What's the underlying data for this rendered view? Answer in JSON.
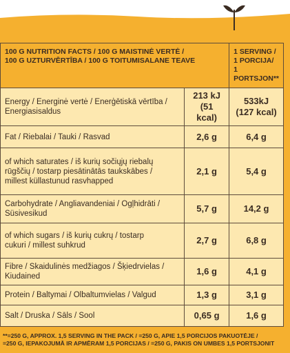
{
  "header": {
    "nutrients_title": [
      "100 G NUTRITION FACTS / 100 G MAISTINĖ VERTĖ /",
      "100 G UZTURVĒRTĪBA / 100 G TOITUMISALANE TEAVE"
    ],
    "serving_title": [
      "1 SERVING /",
      "1 PORCIJA/",
      "1 PORTSJON**"
    ]
  },
  "table": {
    "rows": [
      {
        "label": [
          "Energy / Energinė vertė / Enerģētiskā vērtība /",
          "Energiasisaldus"
        ],
        "per100": [
          "213 kJ",
          "(51 kcal)"
        ],
        "serving": [
          "533kJ",
          "(127 kcal)"
        ]
      },
      {
        "label": [
          "Fat / Riebalai / Tauki / Rasvad"
        ],
        "per100": [
          "2,6 g"
        ],
        "serving": [
          "6,4 g"
        ]
      },
      {
        "label": [
          "of which saturates / iš kurių sočiųjų riebalų",
          "rūgščių / tostarp piesātinātās taukskābes /",
          "millest küllastunud rasvhapped"
        ],
        "per100": [
          "2,1 g"
        ],
        "serving": [
          "5,4 g"
        ]
      },
      {
        "label": [
          "Carbohydrate / Angliavandeniai / Ogļhidrāti /",
          "Süsivesikud"
        ],
        "per100": [
          "5,7 g"
        ],
        "serving": [
          "14,2 g"
        ]
      },
      {
        "label": [
          "of which sugars / iš kurių cukrų / tostarp",
          "cukuri / millest suhkrud"
        ],
        "per100": [
          "2,7 g"
        ],
        "serving": [
          "6,8 g"
        ]
      },
      {
        "label": [
          "Fibre / Skaidulinės medžiagos / Šķiedrvielas /",
          "Kiudained"
        ],
        "per100": [
          "1,6 g"
        ],
        "serving": [
          "4,1 g"
        ]
      },
      {
        "label": [
          "Protein / Baltymai / Olbaltumvielas / Valgud"
        ],
        "per100": [
          "1,3 g"
        ],
        "serving": [
          "3,1 g"
        ]
      },
      {
        "label": [
          "Salt / Druska / Sāls / Sool"
        ],
        "per100": [
          "0,65 g"
        ],
        "serving": [
          "1,6 g"
        ]
      }
    ]
  },
  "footnote": [
    "**=250 G, APPROX. 1,5 SERVING IN THE PACK / =250 G, APIE 1,5 PORCIJOS PAKUOTĖJE /",
    "=250 G, IEPAKOJUMĀ IR APMĒRAM 1,5 PORCIJAS / =250 G, PAKIS ON UMBES 1,5 PORTSJONIT"
  ]
}
